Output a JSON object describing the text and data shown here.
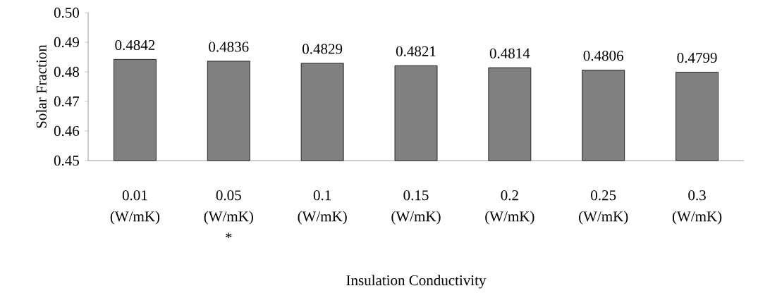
{
  "chart_data": {
    "type": "bar",
    "categories": [
      "0.01 (W/mK)",
      "0.05 (W/mK) *",
      "0.1 (W/mK)",
      "0.15 (W/mK)",
      "0.2 (W/mK)",
      "0.25 (W/mK)",
      "0.3 (W/mK)"
    ],
    "values": [
      0.4842,
      0.4836,
      0.4829,
      0.4821,
      0.4814,
      0.4806,
      0.4799
    ],
    "value_labels": [
      "0.4842",
      "0.4836",
      "0.4829",
      "0.4821",
      "0.4814",
      "0.4806",
      "0.4799"
    ],
    "color": "#808080",
    "xlabel": "Insulation Conductivity",
    "ylabel": "Solar Fraction",
    "ylim": [
      0.45,
      0.5
    ],
    "yticks": [
      0.45,
      0.46,
      0.47,
      0.48,
      0.49,
      {
        "value": 0.5,
        "label": "0.50"
      }
    ],
    "grid": false
  }
}
